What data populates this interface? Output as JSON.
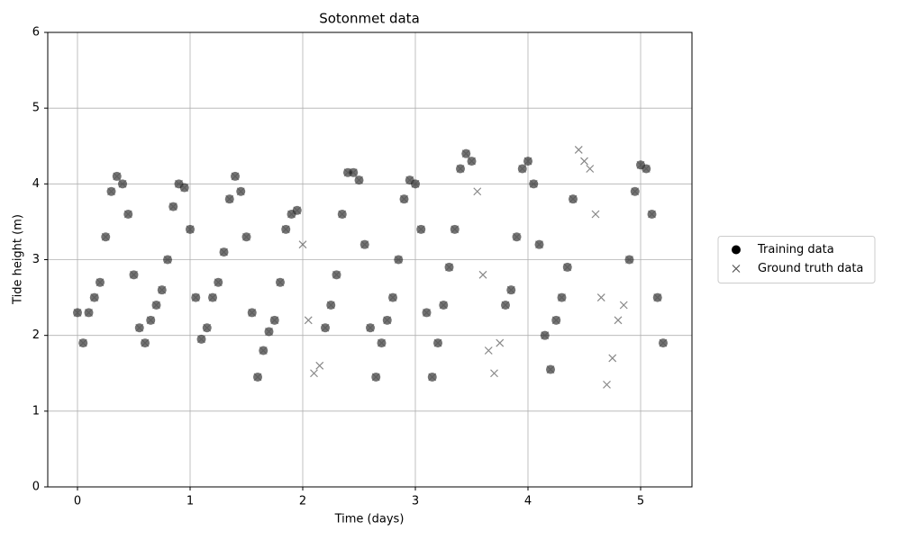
{
  "chart_data": {
    "type": "scatter",
    "title": "Sotonmet data",
    "x_label": "Time (days)",
    "y_label": "Tide height (m)",
    "xlim": [
      -0.264,
      5.456
    ],
    "ylim": [
      0,
      6
    ],
    "xticks": [
      0,
      1,
      2,
      3,
      4,
      5
    ],
    "yticks": [
      0,
      1,
      2,
      3,
      4,
      5,
      6
    ],
    "grid": true,
    "legend": "right",
    "series": [
      {
        "name": "Training data",
        "color": "#000000",
        "marker": "o",
        "x": [
          0,
          0.05,
          0.1,
          0.15,
          0.2,
          0.25,
          0.3,
          0.35,
          0.4,
          0.45,
          0.5,
          0.55,
          0.6,
          0.65,
          0.7,
          0.75,
          0.8,
          0.85,
          0.9,
          0.95,
          1.0,
          1.05,
          1.1,
          1.15,
          1.2,
          1.25,
          1.3,
          1.35,
          1.4,
          1.45,
          1.5,
          1.55,
          1.6,
          1.65,
          1.7,
          1.75,
          1.8,
          1.85,
          1.9,
          1.95,
          2.2,
          2.25,
          2.3,
          2.35,
          2.4,
          2.45,
          2.5,
          2.55,
          2.6,
          2.65,
          2.7,
          2.75,
          2.8,
          2.85,
          2.9,
          2.95,
          3.0,
          3.05,
          3.1,
          3.15,
          3.2,
          3.25,
          3.3,
          3.35,
          3.4,
          3.45,
          3.5,
          3.8,
          3.85,
          3.9,
          3.95,
          4.0,
          4.05,
          4.1,
          4.15,
          4.2,
          4.25,
          4.3,
          4.35,
          4.4,
          4.9,
          4.95,
          5.0,
          5.05,
          5.1,
          5.15,
          5.2
        ],
        "values": [
          2.3,
          1.9,
          2.3,
          2.5,
          2.7,
          3.3,
          3.9,
          4.1,
          4.0,
          3.6,
          2.8,
          2.1,
          1.9,
          2.2,
          2.4,
          2.6,
          3.0,
          3.7,
          4.0,
          3.95,
          3.4,
          2.5,
          1.95,
          2.1,
          2.5,
          2.7,
          3.1,
          3.8,
          4.1,
          3.9,
          3.3,
          2.3,
          1.45,
          1.8,
          2.05,
          2.2,
          2.7,
          3.4,
          3.6,
          3.65,
          2.1,
          2.4,
          2.8,
          3.6,
          4.15,
          4.15,
          4.05,
          3.2,
          2.1,
          1.45,
          1.9,
          2.2,
          2.5,
          3.0,
          3.8,
          4.05,
          4.0,
          3.4,
          2.3,
          1.45,
          1.9,
          2.4,
          2.9,
          3.4,
          4.2,
          4.4,
          4.3,
          2.4,
          2.6,
          3.3,
          4.2,
          4.3,
          4.0,
          3.2,
          2.0,
          1.55,
          2.2,
          2.5,
          2.9,
          3.8,
          3.0,
          3.9,
          4.25,
          4.2,
          3.6,
          2.5,
          1.9
        ]
      },
      {
        "name": "Ground truth data",
        "color": "#555555",
        "marker": "x",
        "x": [
          0,
          0.05,
          0.1,
          0.15,
          0.2,
          0.25,
          0.3,
          0.35,
          0.4,
          0.45,
          0.5,
          0.55,
          0.6,
          0.65,
          0.7,
          0.75,
          0.8,
          0.85,
          0.9,
          0.95,
          1.0,
          1.05,
          1.1,
          1.15,
          1.2,
          1.25,
          1.3,
          1.35,
          1.4,
          1.45,
          1.5,
          1.55,
          1.6,
          1.65,
          1.7,
          1.75,
          1.8,
          1.85,
          1.9,
          1.95,
          2.0,
          2.05,
          2.1,
          2.15,
          2.2,
          2.25,
          2.3,
          2.35,
          2.4,
          2.45,
          2.5,
          2.55,
          2.6,
          2.65,
          2.7,
          2.75,
          2.8,
          2.85,
          2.9,
          2.95,
          3.0,
          3.05,
          3.1,
          3.15,
          3.2,
          3.25,
          3.3,
          3.35,
          3.4,
          3.45,
          3.5,
          3.55,
          3.6,
          3.65,
          3.7,
          3.75,
          3.8,
          3.85,
          3.9,
          3.95,
          4.0,
          4.05,
          4.1,
          4.15,
          4.2,
          4.25,
          4.3,
          4.35,
          4.4,
          4.45,
          4.5,
          4.55,
          4.6,
          4.65,
          4.7,
          4.75,
          4.8,
          4.85,
          4.9,
          4.95,
          5.0,
          5.05,
          5.1,
          5.15,
          5.2
        ],
        "values": [
          2.3,
          1.9,
          2.3,
          2.5,
          2.7,
          3.3,
          3.9,
          4.1,
          4.0,
          3.6,
          2.8,
          2.1,
          1.9,
          2.2,
          2.4,
          2.6,
          3.0,
          3.7,
          4.0,
          3.95,
          3.4,
          2.5,
          1.95,
          2.1,
          2.5,
          2.7,
          3.1,
          3.8,
          4.1,
          3.9,
          3.3,
          2.3,
          1.45,
          1.8,
          2.05,
          2.2,
          2.7,
          3.4,
          3.6,
          3.65,
          3.2,
          2.2,
          1.5,
          1.6,
          2.1,
          2.4,
          2.8,
          3.6,
          4.15,
          4.15,
          4.05,
          3.2,
          2.1,
          1.45,
          1.9,
          2.2,
          2.5,
          3.0,
          3.8,
          4.05,
          4.0,
          3.4,
          2.3,
          1.45,
          1.9,
          2.4,
          2.9,
          3.4,
          4.2,
          4.4,
          4.3,
          3.9,
          2.8,
          1.8,
          1.5,
          1.9,
          2.4,
          2.6,
          3.3,
          4.2,
          4.3,
          4.0,
          3.2,
          2.0,
          1.55,
          2.2,
          2.5,
          2.9,
          3.8,
          4.45,
          4.3,
          4.2,
          3.6,
          2.5,
          1.35,
          1.7,
          2.2,
          2.4,
          3.0,
          3.9,
          4.25,
          4.2,
          3.6,
          2.5,
          1.9
        ]
      }
    ]
  }
}
